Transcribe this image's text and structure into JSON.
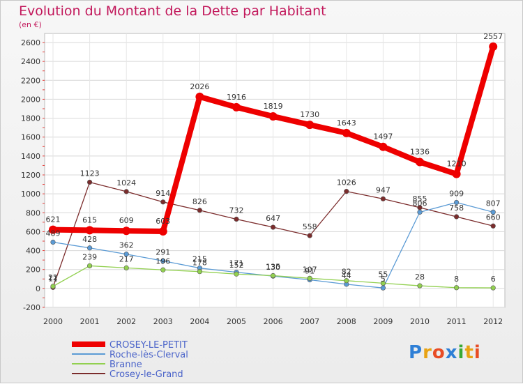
{
  "title": "Evolution du Montant de la Dette par Habitant",
  "subtitle": "(en €)",
  "logo": {
    "text": "Proxiti",
    "letter_colors": [
      "#2e7fd6",
      "#e8a314",
      "#e84c25",
      "#2e7fd6",
      "#3aa935",
      "#e8a314",
      "#e84c25"
    ]
  },
  "chart_data": {
    "type": "line",
    "title": "Evolution du Montant de la Dette par Habitant",
    "ylabel": "(en €)",
    "x": [
      "2000",
      "2001",
      "2002",
      "2003",
      "2004",
      "2005",
      "2006",
      "2007",
      "2008",
      "2009",
      "2010",
      "2011",
      "2012"
    ],
    "ylim": [
      -200,
      2600
    ],
    "yticks": [
      -200,
      0,
      200,
      400,
      600,
      800,
      1000,
      1200,
      1400,
      1600,
      1800,
      2000,
      2200,
      2400,
      2600
    ],
    "grid": true,
    "legend_position": "bottom-left",
    "series": [
      {
        "name": "CROSEY-LE-PETIT",
        "color": "#ee0000",
        "values": [
          621,
          615,
          609,
          603,
          2026,
          1916,
          1819,
          1730,
          1643,
          1497,
          1336,
          1210,
          2557
        ]
      },
      {
        "name": "Roche-lès-Clerval",
        "color": "#5b9bd5",
        "values": [
          489,
          428,
          362,
          291,
          215,
          171,
          130,
          91,
          44,
          5,
          806,
          909,
          807
        ]
      },
      {
        "name": "Branne",
        "color": "#92d050",
        "values": [
          22,
          239,
          217,
          196,
          178,
          152,
          135,
          107,
          82,
          55,
          28,
          8,
          6
        ]
      },
      {
        "name": "Crosey-le-Grand",
        "color": "#7b2c2c",
        "values": [
          11,
          1123,
          1024,
          914,
          826,
          732,
          647,
          558,
          1026,
          947,
          855,
          758,
          660
        ]
      }
    ]
  }
}
